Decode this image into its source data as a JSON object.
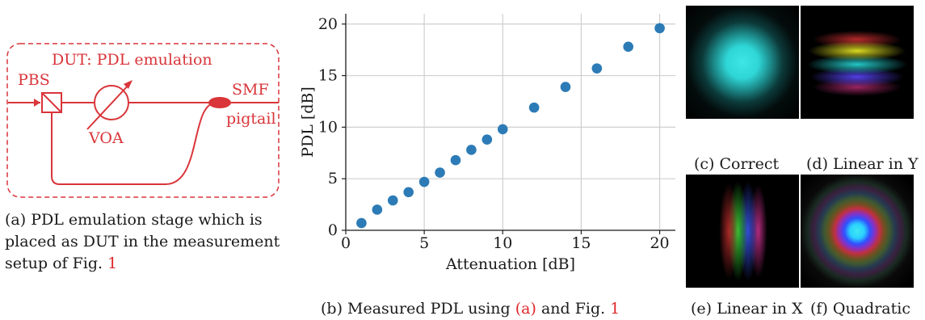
{
  "panel_a": {
    "box_label": "DUT: PDL emulation",
    "pbs_label": "PBS",
    "voa_label": "VOA",
    "smf_label": "SMF",
    "pigtail_label": "pigtail",
    "caption_line1": "(a) PDL emulation stage which is",
    "caption_line2": "placed as DUT in the measurement",
    "caption_line3_text": "setup of Fig. ",
    "caption_line3_ref": "1"
  },
  "panel_b": {
    "caption_text": "(b) Measured PDL using ",
    "caption_ref_a": "(a)",
    "caption_mid": " and Fig. ",
    "caption_ref_fig": "1"
  },
  "panels_right": {
    "c": "(c) Correct",
    "d": "(d) Linear in Y",
    "e": "(e) Linear in X",
    "f": "(f) Quadratic"
  },
  "colors": {
    "diagram_red": "#d9353a",
    "marker_blue": "#2c7bb6",
    "ref_red": "#e0262a"
  },
  "chart_data": {
    "type": "scatter",
    "xlabel": "Attenuation [dB]",
    "ylabel": "PDL [dB]",
    "xlim": [
      0,
      21
    ],
    "ylim": [
      0,
      21
    ],
    "xticks": [
      0,
      5,
      10,
      15,
      20
    ],
    "yticks": [
      0,
      5,
      10,
      15,
      20
    ],
    "grid": true,
    "x": [
      1,
      2,
      3,
      4,
      5,
      6,
      7,
      8,
      9,
      10,
      12,
      14,
      16,
      18,
      20
    ],
    "y": [
      0.7,
      2.0,
      2.9,
      3.7,
      4.7,
      5.6,
      6.8,
      7.8,
      8.8,
      9.8,
      11.9,
      13.9,
      15.7,
      17.8,
      19.6
    ]
  }
}
